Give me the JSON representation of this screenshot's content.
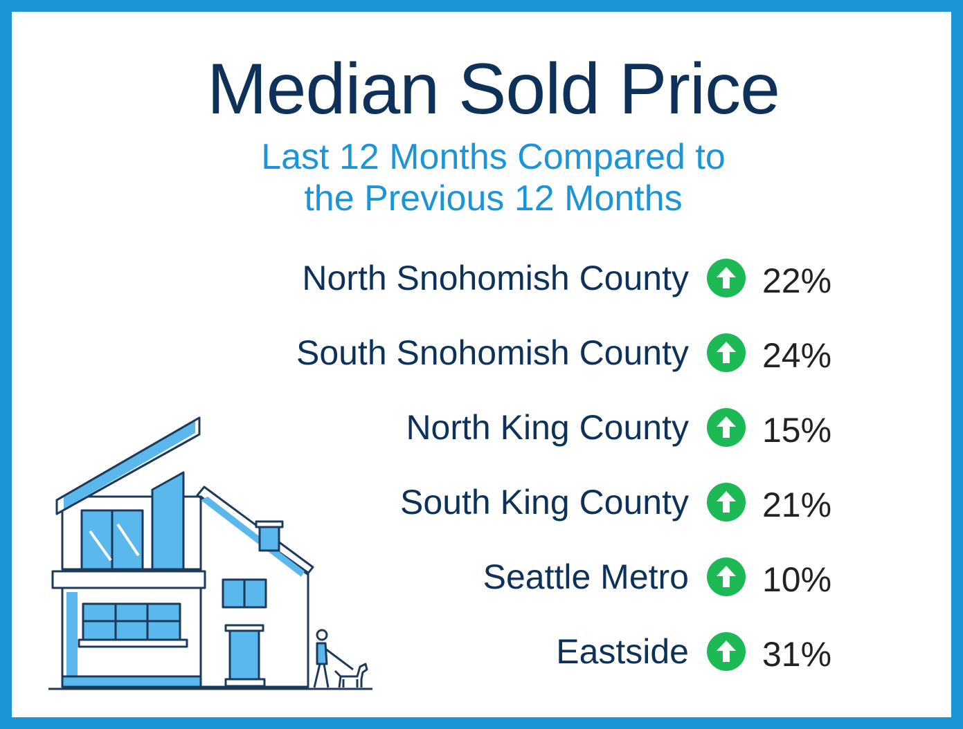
{
  "title": "Median Sold Price",
  "subtitle_line1": "Last 12 Months Compared to",
  "subtitle_line2": "the Previous 12 Months",
  "colors": {
    "frame": "#1b95d8",
    "title": "#0d3158",
    "subtitle": "#1b95d8",
    "up_arrow": "#1db954",
    "house_blue": "#5ab8ec",
    "house_outline": "#1b3a5c"
  },
  "icons": {
    "up": "up-arrow-circle-icon",
    "illustration": "house-with-dog-walker-illustration"
  },
  "chart_data": {
    "type": "table",
    "title": "Median Sold Price",
    "subtitle": "Last 12 Months Compared to the Previous 12 Months",
    "categories": [
      "North Snohomish County",
      "South Snohomish County",
      "North King County",
      "South King County",
      "Seattle Metro",
      "Eastside"
    ],
    "values": [
      22,
      24,
      15,
      21,
      10,
      31
    ],
    "value_labels": [
      "22%",
      "24%",
      "15%",
      "21%",
      "10%",
      "31%"
    ],
    "direction": [
      "up",
      "up",
      "up",
      "up",
      "up",
      "up"
    ],
    "unit": "%"
  }
}
